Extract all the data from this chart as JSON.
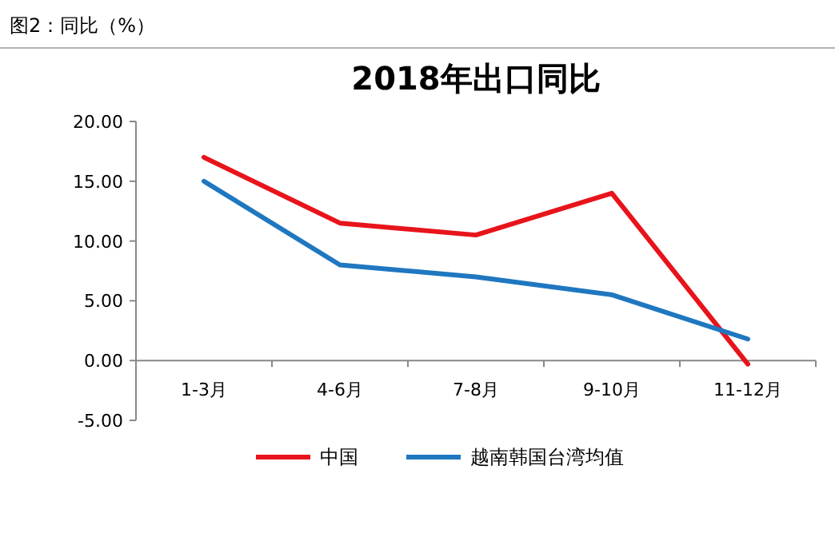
{
  "chart_data": {
    "type": "line",
    "title": "2018年出口同比",
    "subtitle": "图2：同比（%）",
    "categories": [
      "1-3月",
      "4-6月",
      "7-8月",
      "9-10月",
      "11-12月"
    ],
    "series": [
      {
        "name": "中国",
        "color": "#e8141b",
        "values": [
          17.0,
          11.5,
          10.5,
          14.0,
          -0.3
        ]
      },
      {
        "name": "越南韩国台湾均值",
        "color": "#1f77c0",
        "values": [
          15.0,
          8.0,
          7.0,
          5.5,
          1.8
        ]
      }
    ],
    "ylim": [
      -5,
      20
    ],
    "yticks": [
      {
        "value": -5,
        "label": "-5.00"
      },
      {
        "value": 0,
        "label": "0.00"
      },
      {
        "value": 5,
        "label": "5.00"
      },
      {
        "value": 10,
        "label": "10.00"
      },
      {
        "value": 15,
        "label": "15.00"
      },
      {
        "value": 20,
        "label": "20.00"
      }
    ],
    "legend": "bottom"
  }
}
